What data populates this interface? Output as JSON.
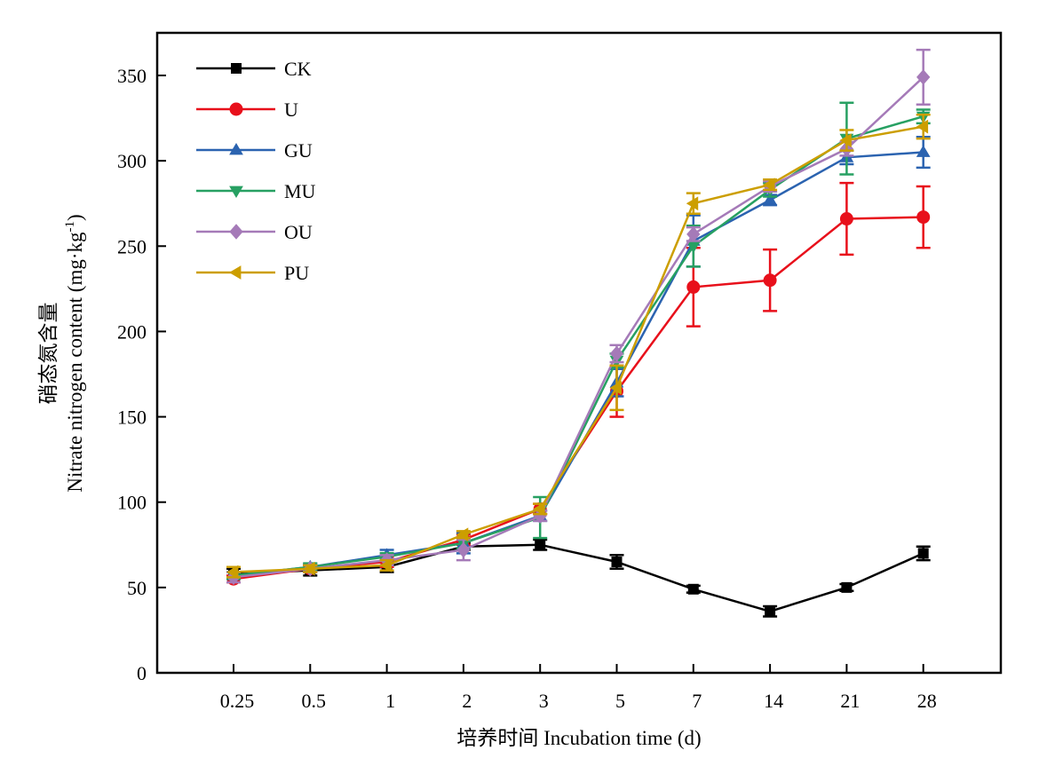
{
  "chart_data": {
    "type": "line",
    "title": "",
    "xlabel": "培养时间 Incubation time (d)",
    "ylabel_cn": "硝态氮含量",
    "ylabel_en": "Nitrate nitrogen content (mg·kg",
    "ylabel_sup": "-1",
    "ylabel_close": ")",
    "categories": [
      "0.25",
      "0.5",
      "1",
      "2",
      "3",
      "5",
      "7",
      "14",
      "21",
      "28"
    ],
    "ylim": [
      0,
      350
    ],
    "yticks": [
      0,
      50,
      100,
      150,
      200,
      250,
      300,
      350
    ],
    "grid": false,
    "legend_position": "top-left",
    "series": [
      {
        "name": "CK",
        "color": "#000000",
        "marker": "square",
        "values": [
          58,
          60,
          62,
          74,
          75,
          65,
          49,
          36,
          50,
          70
        ],
        "errors": [
          3,
          3,
          3,
          2,
          3,
          4,
          2,
          3,
          2,
          4
        ]
      },
      {
        "name": "U",
        "color": "#e8101b",
        "marker": "circle",
        "values": [
          55,
          61,
          65,
          78,
          96,
          165,
          226,
          230,
          266,
          267
        ],
        "errors": [
          2,
          2,
          3,
          3,
          3,
          15,
          23,
          18,
          21,
          18
        ]
      },
      {
        "name": "GU",
        "color": "#2b63b0",
        "marker": "triangle-up",
        "values": [
          57,
          62,
          69,
          76,
          92,
          170,
          253,
          277,
          302,
          305
        ],
        "errors": [
          2,
          2,
          3,
          6,
          3,
          8,
          15,
          3,
          4,
          9
        ]
      },
      {
        "name": "MU",
        "color": "#27a062",
        "marker": "triangle-down",
        "values": [
          57,
          62,
          68,
          76,
          91,
          183,
          250,
          283,
          313,
          326
        ],
        "errors": [
          2,
          2,
          2,
          3,
          12,
          4,
          12,
          4,
          21,
          4
        ]
      },
      {
        "name": "OU",
        "color": "#a57ab8",
        "marker": "diamond",
        "values": [
          56,
          61,
          66,
          72,
          92,
          187,
          257,
          285,
          307,
          349
        ],
        "errors": [
          3,
          2,
          3,
          6,
          3,
          5,
          4,
          3,
          4,
          16
        ]
      },
      {
        "name": "PU",
        "color": "#cc9e00",
        "marker": "triangle-left",
        "values": [
          59,
          61,
          63,
          81,
          96,
          167,
          275,
          286,
          312,
          320
        ],
        "errors": [
          3,
          2,
          3,
          2,
          3,
          13,
          6,
          3,
          6,
          7
        ]
      }
    ]
  }
}
